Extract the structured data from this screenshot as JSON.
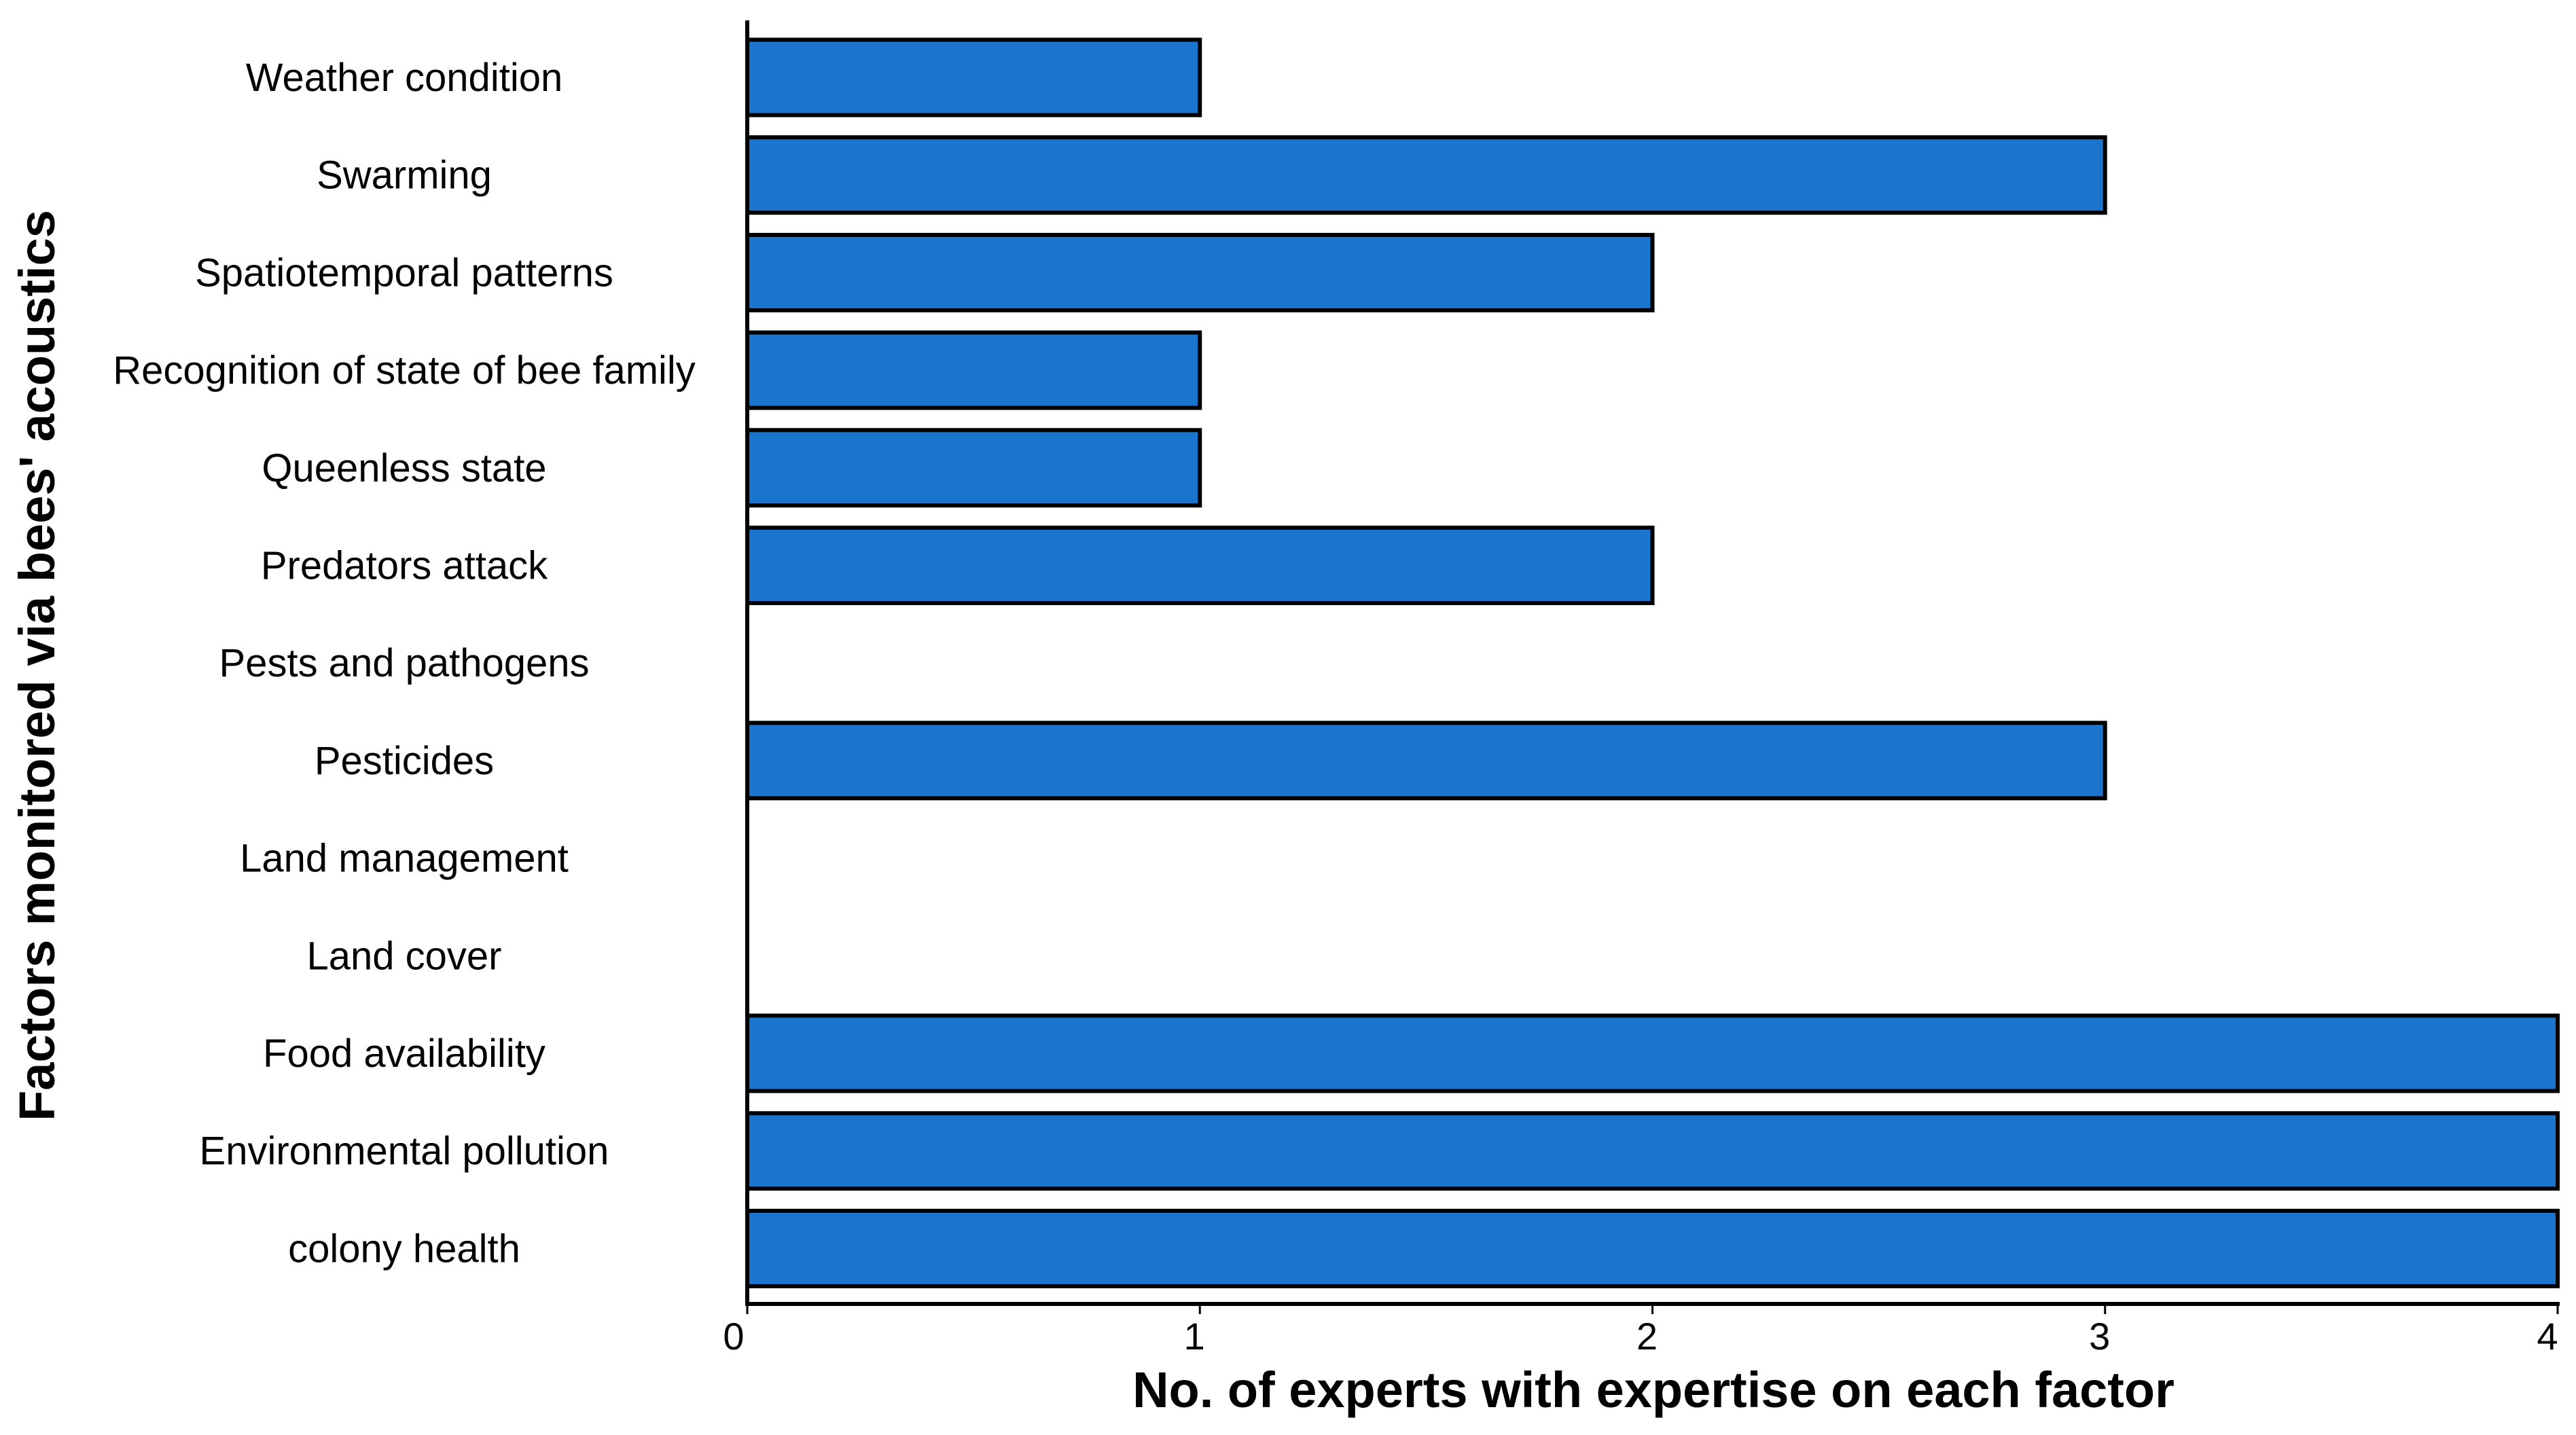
{
  "chart_data": {
    "type": "bar",
    "orientation": "horizontal",
    "title": "",
    "xlabel": "No. of experts with expertise on each factor",
    "ylabel": "Factors monitored via bees' acoustics",
    "categories": [
      "Weather condition",
      "Swarming",
      "Spatiotemporal patterns",
      "Recognition of state of bee family",
      "Queenless state",
      "Predators attack",
      "Pests and pathogens",
      "Pesticides",
      "Land management",
      "Land cover",
      "Food availability",
      "Environmental pollution",
      "colony health"
    ],
    "values": [
      1,
      3,
      2,
      1,
      1,
      2,
      0,
      3,
      0,
      0,
      4,
      4,
      4
    ],
    "xlim": [
      0,
      4
    ],
    "xticks": [
      "0",
      "1",
      "2",
      "3",
      "4"
    ],
    "grid": false,
    "bar_color": "#1b74cd"
  }
}
